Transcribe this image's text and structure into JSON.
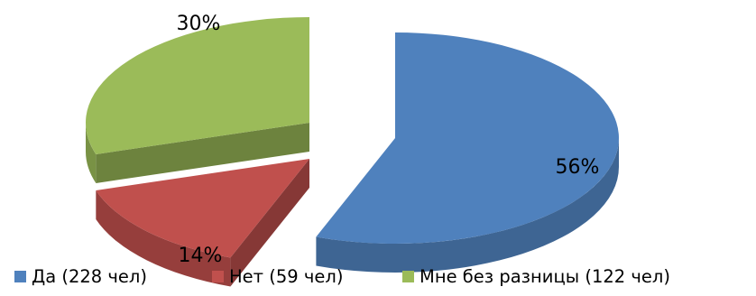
{
  "chart_data": {
    "type": "pie",
    "title": "",
    "categories": [
      "Да (228 чел)",
      "Нет (59 чел)",
      "Мне без разницы (122 чел)"
    ],
    "values": [
      228,
      59,
      122
    ],
    "percent_labels": [
      "56%",
      "14%",
      "30%"
    ],
    "colors": [
      "#4F81BD",
      "#C0504D",
      "#9BBB59"
    ],
    "exploded": true,
    "style": "3d",
    "legend_position": "bottom"
  }
}
